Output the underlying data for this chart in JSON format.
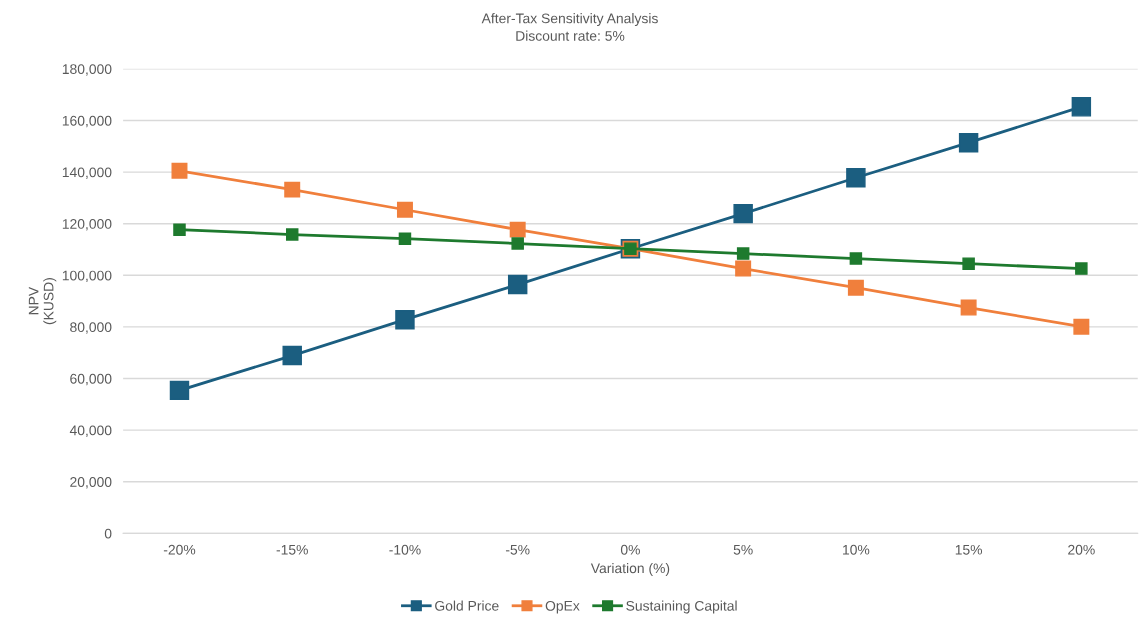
{
  "chart_data": {
    "type": "line",
    "title": "After-Tax Sensitivity Analysis",
    "subtitle": "Discount rate: 5%",
    "xlabel": "Variation (%)",
    "ylabel": "NPV\n(KUSD)",
    "categories": [
      "-20%",
      "-15%",
      "-10%",
      "-5%",
      "0%",
      "5%",
      "10%",
      "15%",
      "20%"
    ],
    "series": [
      {
        "name": "Gold Price",
        "color": "#1b5e80",
        "values": [
          55400,
          68900,
          82800,
          96400,
          110300,
          123900,
          137800,
          151400,
          165300
        ]
      },
      {
        "name": "OpEx",
        "color": "#f07f3c",
        "values": [
          140500,
          133200,
          125400,
          117700,
          110300,
          102600,
          95200,
          87500,
          80100
        ]
      },
      {
        "name": "Sustaining Capital",
        "color": "#1e7a2e",
        "values": [
          117700,
          115800,
          114200,
          112300,
          110300,
          108400,
          106500,
          104500,
          102600
        ]
      }
    ],
    "ylim": [
      0,
      180000
    ],
    "yticks": [
      {
        "value": 0,
        "label": "0"
      },
      {
        "value": 20000,
        "label": "20,000"
      },
      {
        "value": 40000,
        "label": "40,000"
      },
      {
        "value": 60000,
        "label": "60,000"
      },
      {
        "value": 80000,
        "label": "80,000"
      },
      {
        "value": 100000,
        "label": "100,000"
      },
      {
        "value": 120000,
        "label": "120,000"
      },
      {
        "value": 140000,
        "label": "140,000"
      },
      {
        "value": 160000,
        "label": "160,000"
      },
      {
        "value": 180000,
        "label": "180,000"
      }
    ],
    "grid": "y",
    "legend": "bottom",
    "marker": "square",
    "line_style": "solid"
  }
}
